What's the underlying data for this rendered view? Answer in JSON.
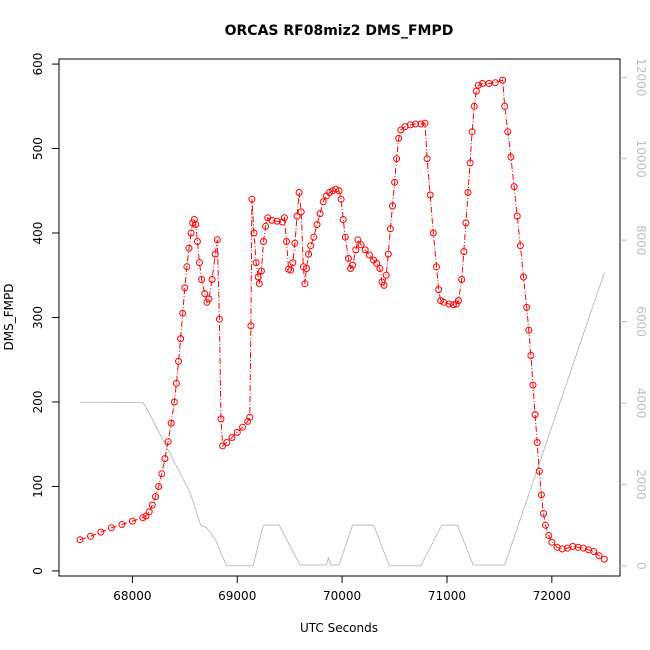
{
  "chart_data": {
    "type": "scatter",
    "title": "ORCAS RF08miz2 DMS_FMPD",
    "xlabel": "UTC Seconds",
    "ylabel": "DMS_FMPD",
    "xlim": [
      67300,
      72650
    ],
    "ylim": [
      -6,
      606
    ],
    "y2lim": [
      -250,
      12450
    ],
    "x_ticks": [
      68000,
      69000,
      70000,
      71000,
      72000
    ],
    "y_ticks": [
      0,
      100,
      200,
      300,
      400,
      500,
      600
    ],
    "y2_ticks": [
      0,
      2000,
      4000,
      6000,
      8000,
      10000,
      12000
    ],
    "grid": false,
    "series": [
      {
        "marker": "open-circle",
        "line": "dash-dot",
        "color": "#ff0000",
        "axis": "left",
        "points": [
          [
            67500,
            37
          ],
          [
            67600,
            41
          ],
          [
            67700,
            46
          ],
          [
            67800,
            51
          ],
          [
            67900,
            55
          ],
          [
            68000,
            59
          ],
          [
            68100,
            63
          ],
          [
            68130,
            65
          ],
          [
            68160,
            70
          ],
          [
            68190,
            78
          ],
          [
            68220,
            88
          ],
          [
            68250,
            100
          ],
          [
            68280,
            115
          ],
          [
            68310,
            133
          ],
          [
            68340,
            153
          ],
          [
            68370,
            175
          ],
          [
            68400,
            200
          ],
          [
            68420,
            222
          ],
          [
            68440,
            248
          ],
          [
            68460,
            275
          ],
          [
            68480,
            305
          ],
          [
            68500,
            335
          ],
          [
            68520,
            360
          ],
          [
            68540,
            382
          ],
          [
            68560,
            400
          ],
          [
            68575,
            412
          ],
          [
            68590,
            416
          ],
          [
            68605,
            410
          ],
          [
            68620,
            390
          ],
          [
            68640,
            365
          ],
          [
            68660,
            345
          ],
          [
            68690,
            328
          ],
          [
            68710,
            318
          ],
          [
            68730,
            322
          ],
          [
            68760,
            345
          ],
          [
            68790,
            375
          ],
          [
            68810,
            392
          ],
          [
            68830,
            298
          ],
          [
            68845,
            180
          ],
          [
            68860,
            148
          ],
          [
            68900,
            152
          ],
          [
            68950,
            158
          ],
          [
            69000,
            164
          ],
          [
            69050,
            170
          ],
          [
            69100,
            177
          ],
          [
            69120,
            182
          ],
          [
            69130,
            290
          ],
          [
            69140,
            440
          ],
          [
            69160,
            400
          ],
          [
            69180,
            365
          ],
          [
            69200,
            348
          ],
          [
            69210,
            340
          ],
          [
            69230,
            355
          ],
          [
            69250,
            390
          ],
          [
            69270,
            408
          ],
          [
            69290,
            418
          ],
          [
            69330,
            415
          ],
          [
            69380,
            414
          ],
          [
            69430,
            413
          ],
          [
            69450,
            418
          ],
          [
            69470,
            390
          ],
          [
            69490,
            357
          ],
          [
            69510,
            356
          ],
          [
            69530,
            365
          ],
          [
            69550,
            388
          ],
          [
            69570,
            420
          ],
          [
            69590,
            448
          ],
          [
            69610,
            425
          ],
          [
            69630,
            360
          ],
          [
            69645,
            340
          ],
          [
            69660,
            358
          ],
          [
            69680,
            375
          ],
          [
            69700,
            385
          ],
          [
            69730,
            395
          ],
          [
            69760,
            410
          ],
          [
            69790,
            423
          ],
          [
            69820,
            437
          ],
          [
            69850,
            444
          ],
          [
            69880,
            448
          ],
          [
            69910,
            450
          ],
          [
            69940,
            452
          ],
          [
            69970,
            450
          ],
          [
            69990,
            440
          ],
          [
            70010,
            416
          ],
          [
            70030,
            395
          ],
          [
            70060,
            370
          ],
          [
            70080,
            358
          ],
          [
            70100,
            362
          ],
          [
            70130,
            380
          ],
          [
            70150,
            392
          ],
          [
            70180,
            386
          ],
          [
            70220,
            380
          ],
          [
            70260,
            374
          ],
          [
            70300,
            368
          ],
          [
            70330,
            364
          ],
          [
            70360,
            358
          ],
          [
            70380,
            342
          ],
          [
            70400,
            338
          ],
          [
            70420,
            350
          ],
          [
            70440,
            375
          ],
          [
            70460,
            405
          ],
          [
            70480,
            432
          ],
          [
            70500,
            460
          ],
          [
            70520,
            488
          ],
          [
            70540,
            512
          ],
          [
            70560,
            522
          ],
          [
            70600,
            526
          ],
          [
            70650,
            528
          ],
          [
            70700,
            529
          ],
          [
            70750,
            529
          ],
          [
            70790,
            530
          ],
          [
            70810,
            488
          ],
          [
            70840,
            445
          ],
          [
            70870,
            400
          ],
          [
            70900,
            360
          ],
          [
            70920,
            333
          ],
          [
            70940,
            320
          ],
          [
            70970,
            318
          ],
          [
            71020,
            316
          ],
          [
            71060,
            315
          ],
          [
            71090,
            316
          ],
          [
            71110,
            320
          ],
          [
            71140,
            345
          ],
          [
            71160,
            378
          ],
          [
            71180,
            412
          ],
          [
            71200,
            448
          ],
          [
            71220,
            483
          ],
          [
            71240,
            520
          ],
          [
            71260,
            550
          ],
          [
            71280,
            568
          ],
          [
            71300,
            575
          ],
          [
            71340,
            577
          ],
          [
            71400,
            577
          ],
          [
            71460,
            578
          ],
          [
            71530,
            581
          ],
          [
            71550,
            550
          ],
          [
            71580,
            520
          ],
          [
            71610,
            490
          ],
          [
            71640,
            455
          ],
          [
            71670,
            420
          ],
          [
            71700,
            385
          ],
          [
            71730,
            348
          ],
          [
            71760,
            312
          ],
          [
            71780,
            285
          ],
          [
            71800,
            255
          ],
          [
            71820,
            220
          ],
          [
            71840,
            185
          ],
          [
            71860,
            152
          ],
          [
            71880,
            118
          ],
          [
            71900,
            90
          ],
          [
            71920,
            68
          ],
          [
            71940,
            54
          ],
          [
            71970,
            42
          ],
          [
            72000,
            34
          ],
          [
            72050,
            28
          ],
          [
            72100,
            26
          ],
          [
            72150,
            27
          ],
          [
            72200,
            29
          ],
          [
            72250,
            28
          ],
          [
            72300,
            27
          ],
          [
            72350,
            25
          ],
          [
            72400,
            23
          ],
          [
            72450,
            18
          ],
          [
            72500,
            14
          ]
        ]
      },
      {
        "marker": "none",
        "line": "solid",
        "color": "#bebebe",
        "axis": "right",
        "points": [
          [
            67500,
            4020
          ],
          [
            67600,
            4020
          ],
          [
            68100,
            4010
          ],
          [
            68150,
            3800
          ],
          [
            68250,
            3300
          ],
          [
            68350,
            2800
          ],
          [
            68450,
            2300
          ],
          [
            68550,
            1800
          ],
          [
            68650,
            1000
          ],
          [
            68700,
            950
          ],
          [
            68750,
            800
          ],
          [
            68800,
            600
          ],
          [
            68850,
            280
          ],
          [
            68900,
            0
          ],
          [
            69150,
            0
          ],
          [
            69250,
            1000
          ],
          [
            69400,
            1000
          ],
          [
            69500,
            500
          ],
          [
            69600,
            20
          ],
          [
            69850,
            20
          ],
          [
            69870,
            200
          ],
          [
            69890,
            20
          ],
          [
            69970,
            20
          ],
          [
            70100,
            1000
          ],
          [
            70300,
            1000
          ],
          [
            70450,
            0
          ],
          [
            70750,
            0
          ],
          [
            70950,
            1000
          ],
          [
            71100,
            1000
          ],
          [
            71250,
            20
          ],
          [
            71550,
            20
          ],
          [
            72500,
            7200
          ]
        ]
      }
    ]
  }
}
